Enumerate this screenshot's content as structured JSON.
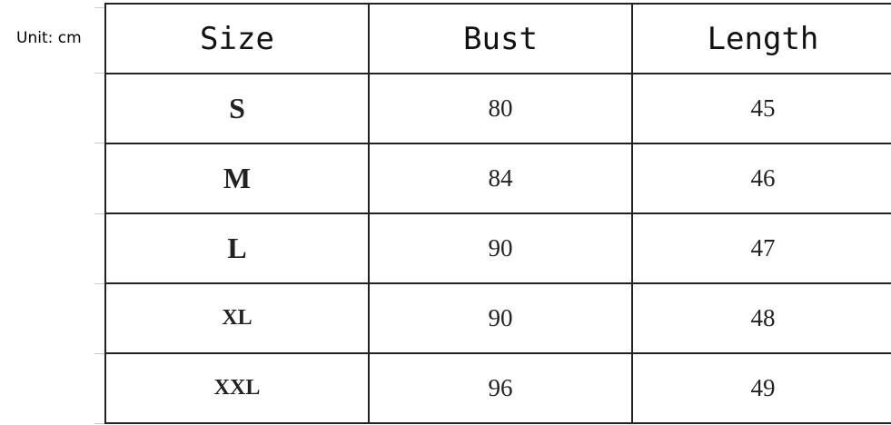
{
  "unit_label": "Unit: cm",
  "table": {
    "headers": [
      "Size",
      "Bust",
      "Length"
    ],
    "rows": [
      [
        "S",
        "80",
        "45"
      ],
      [
        "M",
        "84",
        "46"
      ],
      [
        "L",
        "90",
        "47"
      ],
      [
        "XL",
        "90",
        "48"
      ],
      [
        "XXL",
        "96",
        "49"
      ]
    ]
  }
}
